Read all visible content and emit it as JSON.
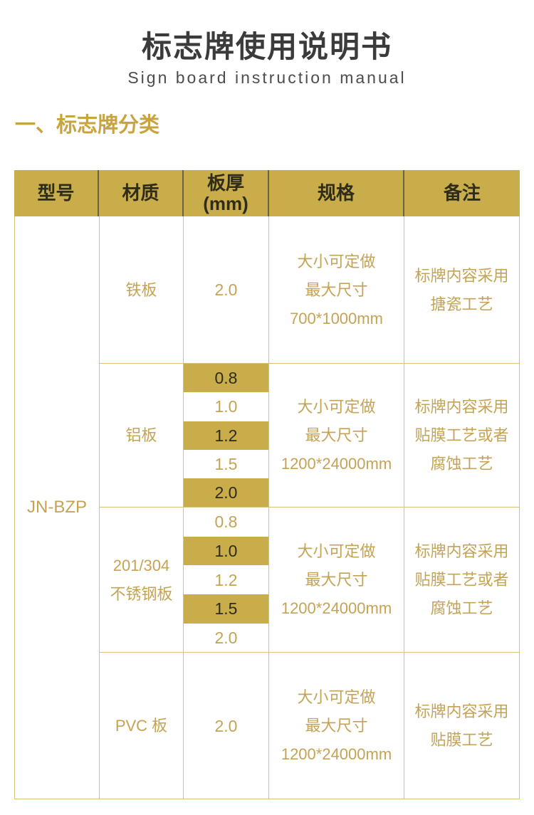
{
  "page": {
    "title": "标志牌使用说明书",
    "subtitle": "Sign board instruction manual",
    "section_heading": "一、标志牌分类"
  },
  "colors": {
    "gold_fill": "#c9ad4b",
    "gold_text": "#c5a355",
    "dark_text_on_gold": "#2f2d19",
    "table_border": "#dcc07a",
    "header_divider": "#6a6443",
    "title_text": "#3b3b3b",
    "section_heading_text": "#c9a43e"
  },
  "table": {
    "headers": {
      "model": "型号",
      "material": "材质",
      "thickness_line1": "板厚",
      "thickness_line2": "(mm)",
      "spec": "规格",
      "remark": "备注"
    },
    "model": "JN-BZP",
    "rows": [
      {
        "material_lines": [
          "铁板"
        ],
        "thicknesses": [
          "2.0"
        ],
        "highlighted": [
          false
        ],
        "spec_lines": [
          "大小可定做",
          "最大尺寸",
          "700*1000mm"
        ],
        "remark_lines": [
          "标牌内容采用",
          "搪瓷工艺"
        ]
      },
      {
        "material_lines": [
          "铝板"
        ],
        "thicknesses": [
          "0.8",
          "1.0",
          "1.2",
          "1.5",
          "2.0"
        ],
        "highlighted": [
          true,
          false,
          true,
          false,
          true
        ],
        "spec_lines": [
          "大小可定做",
          "最大尺寸",
          "1200*24000mm"
        ],
        "remark_lines": [
          "标牌内容采用",
          "贴膜工艺或者",
          "腐蚀工艺"
        ]
      },
      {
        "material_lines": [
          "201/304",
          "不锈钢板"
        ],
        "thicknesses": [
          "0.8",
          "1.0",
          "1.2",
          "1.5",
          "2.0"
        ],
        "highlighted": [
          false,
          true,
          false,
          true,
          false
        ],
        "spec_lines": [
          "大小可定做",
          "最大尺寸",
          "1200*24000mm"
        ],
        "remark_lines": [
          "标牌内容采用",
          "贴膜工艺或者",
          "腐蚀工艺"
        ]
      },
      {
        "material_lines": [
          "PVC 板"
        ],
        "thicknesses": [
          "2.0"
        ],
        "highlighted": [
          false
        ],
        "spec_lines": [
          "大小可定做",
          "最大尺寸",
          "1200*24000mm"
        ],
        "remark_lines": [
          "标牌内容采用",
          "贴膜工艺"
        ]
      }
    ]
  }
}
